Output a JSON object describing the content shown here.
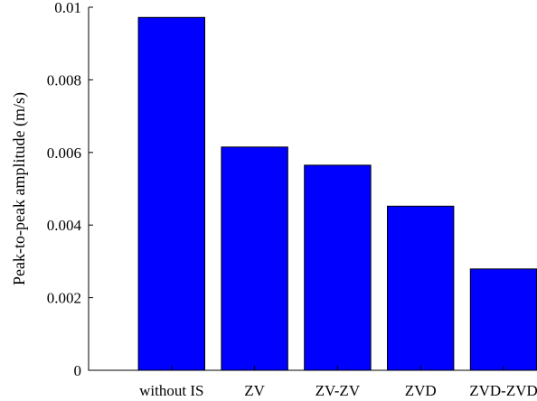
{
  "chart_data": {
    "type": "bar",
    "title": "",
    "xlabel": "",
    "ylabel": "Peak-to-peak amplitude (m/s)",
    "categories": [
      "without IS",
      "ZV",
      "ZV-ZV",
      "ZVD",
      "ZVD-ZVD"
    ],
    "values": [
      0.00972,
      0.00615,
      0.00565,
      0.00452,
      0.00279
    ],
    "ylim": [
      0,
      0.01
    ],
    "yticks": [
      0,
      0.002,
      0.004,
      0.006,
      0.008,
      0.01
    ],
    "ytick_labels": [
      "0",
      "0.002",
      "0.004",
      "0.006",
      "0.008",
      "0.01"
    ],
    "grid": false,
    "bar_color": "#0000ff",
    "edge_color": "#000000"
  }
}
